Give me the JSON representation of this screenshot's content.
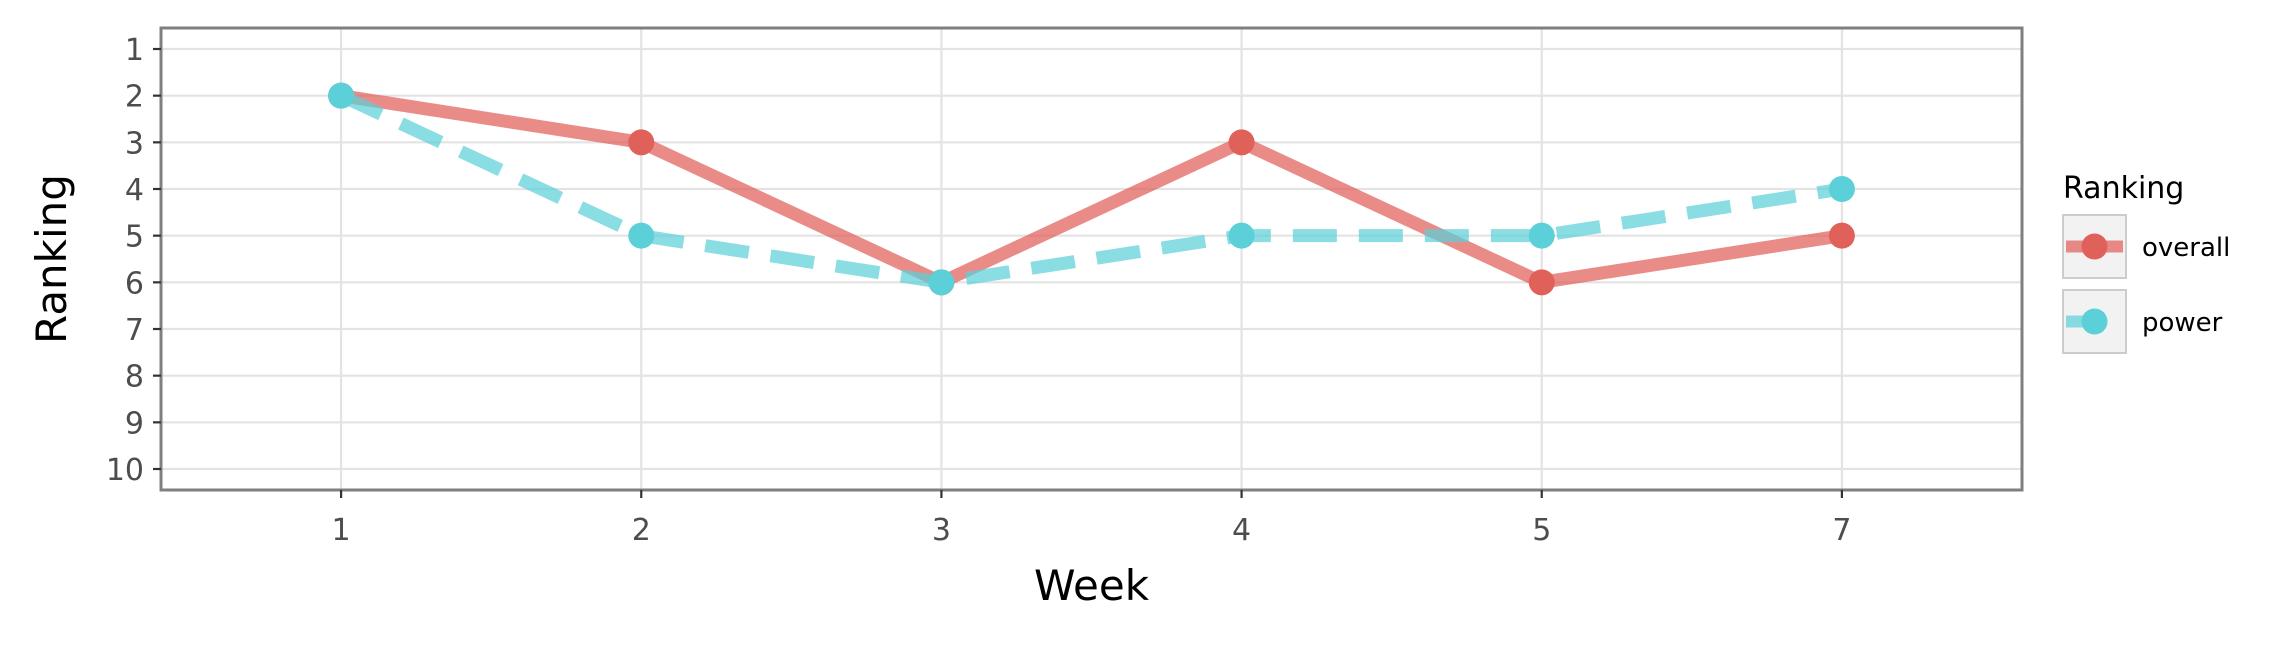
{
  "chart_data": {
    "type": "line",
    "xlabel": "Week",
    "ylabel": "Ranking",
    "categories": [
      "1",
      "2",
      "3",
      "4",
      "5",
      "7"
    ],
    "y_ticks": [
      "1",
      "2",
      "3",
      "4",
      "5",
      "6",
      "7",
      "8",
      "9",
      "10"
    ],
    "ylim": [
      1,
      10
    ],
    "y_reversed": true,
    "grid": true,
    "legend": {
      "title": "Ranking",
      "position": "right"
    },
    "series": [
      {
        "name": "overall",
        "values": [
          2,
          3,
          6,
          3,
          6,
          5
        ],
        "color": "#e0605a",
        "line_style": "solid"
      },
      {
        "name": "power",
        "values": [
          2,
          5,
          6,
          5,
          5,
          4
        ],
        "color": "#5bd0d8",
        "line_style": "dashed"
      }
    ]
  }
}
